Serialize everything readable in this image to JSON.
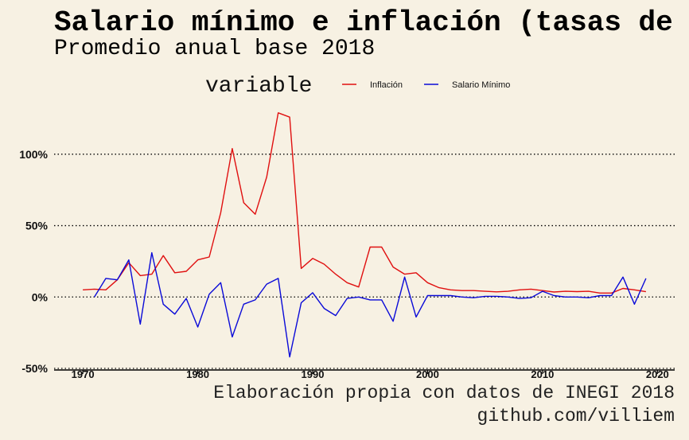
{
  "title": "Salario mínimo e inflación (tasas de",
  "subtitle": "Promedio anual base 2018",
  "caption_line1": "Elaboración propia con datos de INEGI 2018",
  "caption_line2": "github.com/villiem",
  "colors": {
    "background": "#f7f1e3",
    "inflacion": "#e01010",
    "salario": "#0a0ad8",
    "grid": "#000000"
  },
  "chart_data": {
    "type": "line",
    "legend_title": "variable",
    "legend_position": "top",
    "xlim": [
      1967.5,
      2021.5
    ],
    "ylim": [
      -0.5,
      1.3
    ],
    "x_ticks": [
      1970,
      1980,
      1990,
      2000,
      2010,
      2020
    ],
    "y_ticks": [
      -0.5,
      0,
      0.5,
      1.0
    ],
    "y_tick_labels": [
      "-50%",
      "0%",
      "50%",
      "100%"
    ],
    "grid": "horizontal dotted",
    "series": [
      {
        "name": "Inflación",
        "color": "#e01010",
        "x": [
          1970,
          1971,
          1972,
          1973,
          1974,
          1975,
          1976,
          1977,
          1978,
          1979,
          1980,
          1981,
          1982,
          1983,
          1984,
          1985,
          1986,
          1987,
          1988,
          1989,
          1990,
          1991,
          1992,
          1993,
          1994,
          1995,
          1996,
          1997,
          1998,
          1999,
          2000,
          2001,
          2002,
          2003,
          2004,
          2005,
          2006,
          2007,
          2008,
          2009,
          2010,
          2011,
          2012,
          2013,
          2014,
          2015,
          2016,
          2017,
          2018,
          2019
        ],
        "values": [
          0.05,
          0.055,
          0.05,
          0.12,
          0.24,
          0.15,
          0.16,
          0.29,
          0.17,
          0.18,
          0.26,
          0.28,
          0.59,
          1.04,
          0.66,
          0.58,
          0.84,
          1.29,
          1.26,
          0.2,
          0.27,
          0.23,
          0.16,
          0.1,
          0.07,
          0.35,
          0.35,
          0.21,
          0.16,
          0.17,
          0.1,
          0.065,
          0.05,
          0.045,
          0.045,
          0.04,
          0.036,
          0.04,
          0.05,
          0.055,
          0.045,
          0.035,
          0.04,
          0.038,
          0.04,
          0.028,
          0.028,
          0.06,
          0.05,
          0.037
        ]
      },
      {
        "name": "Salario Mínimo",
        "color": "#0a0ad8",
        "x": [
          1971,
          1972,
          1973,
          1974,
          1975,
          1976,
          1977,
          1978,
          1979,
          1980,
          1981,
          1982,
          1983,
          1984,
          1985,
          1986,
          1987,
          1988,
          1989,
          1990,
          1991,
          1992,
          1993,
          1994,
          1995,
          1996,
          1997,
          1998,
          1999,
          2000,
          2001,
          2002,
          2003,
          2004,
          2005,
          2006,
          2007,
          2008,
          2009,
          2010,
          2011,
          2012,
          2013,
          2014,
          2015,
          2016,
          2017,
          2018,
          2019
        ],
        "values": [
          0.0,
          0.13,
          0.12,
          0.26,
          -0.19,
          0.31,
          -0.05,
          -0.12,
          -0.01,
          -0.21,
          0.02,
          0.1,
          -0.28,
          -0.05,
          -0.02,
          0.09,
          0.13,
          -0.42,
          -0.04,
          0.03,
          -0.08,
          -0.13,
          -0.01,
          0.0,
          -0.02,
          -0.02,
          -0.17,
          0.14,
          -0.14,
          0.01,
          0.01,
          0.01,
          0.0,
          -0.005,
          0.005,
          0.005,
          0.0,
          -0.01,
          -0.005,
          0.04,
          0.01,
          0.0,
          0.0,
          -0.005,
          0.01,
          0.01,
          0.14,
          -0.05,
          0.13
        ]
      }
    ]
  }
}
